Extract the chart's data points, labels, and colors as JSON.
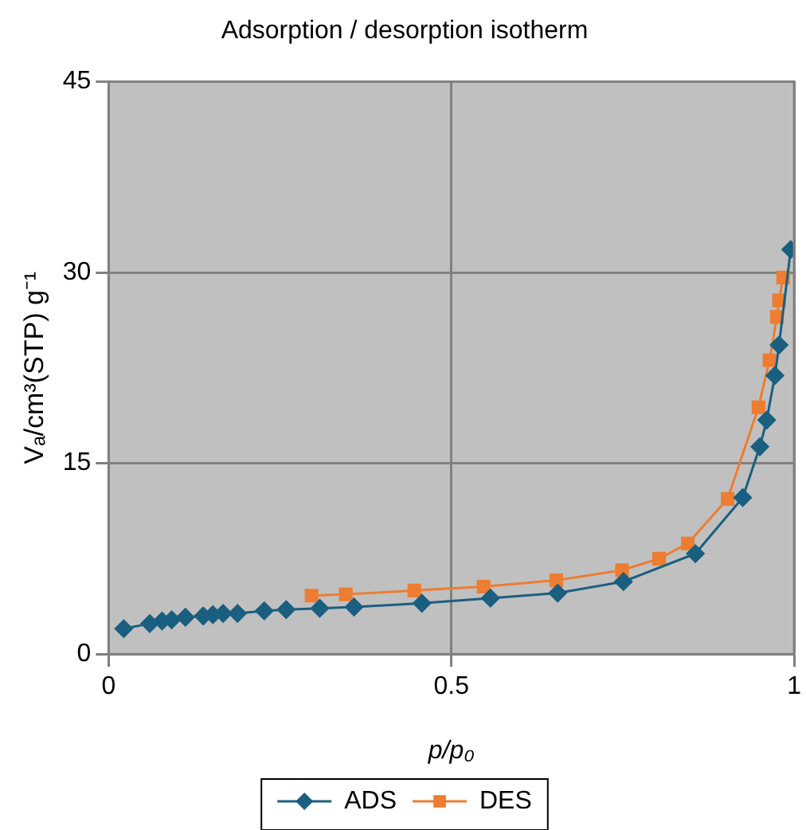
{
  "chart_data": {
    "type": "line",
    "title": "Adsorption / desorption isotherm",
    "xlabel": "p/p₀",
    "ylabel": "Vₐ/cm³(STP) g⁻¹",
    "xlim": [
      0,
      1
    ],
    "xticks": [
      0,
      0.5,
      1
    ],
    "ylim": [
      0,
      45
    ],
    "yticks": [
      0,
      15,
      30,
      45
    ],
    "grid": true,
    "legend": "bottom",
    "line_style": "solid",
    "series": [
      {
        "name": "ADS",
        "color": "#1a5f80",
        "marker": "diamond",
        "x": [
          0.022,
          0.06,
          0.078,
          0.092,
          0.112,
          0.138,
          0.152,
          0.167,
          0.188,
          0.227,
          0.259,
          0.308,
          0.358,
          0.457,
          0.557,
          0.655,
          0.751,
          0.856,
          0.925,
          0.95,
          0.96,
          0.972,
          0.978,
          0.995
        ],
        "values": [
          2.0,
          2.4,
          2.6,
          2.7,
          2.9,
          3.0,
          3.1,
          3.2,
          3.2,
          3.4,
          3.5,
          3.6,
          3.7,
          4.0,
          4.4,
          4.8,
          5.7,
          7.9,
          12.3,
          16.3,
          18.4,
          21.9,
          24.3,
          31.8
        ]
      },
      {
        "name": "DES",
        "color": "#ed7d31",
        "marker": "square",
        "x": [
          0.296,
          0.346,
          0.446,
          0.547,
          0.653,
          0.749,
          0.803,
          0.845,
          0.903,
          0.948,
          0.964,
          0.975,
          0.978,
          0.984
        ],
        "values": [
          4.6,
          4.7,
          5.0,
          5.3,
          5.8,
          6.6,
          7.5,
          8.7,
          12.2,
          19.4,
          23.1,
          26.5,
          27.8,
          29.6
        ]
      }
    ]
  }
}
